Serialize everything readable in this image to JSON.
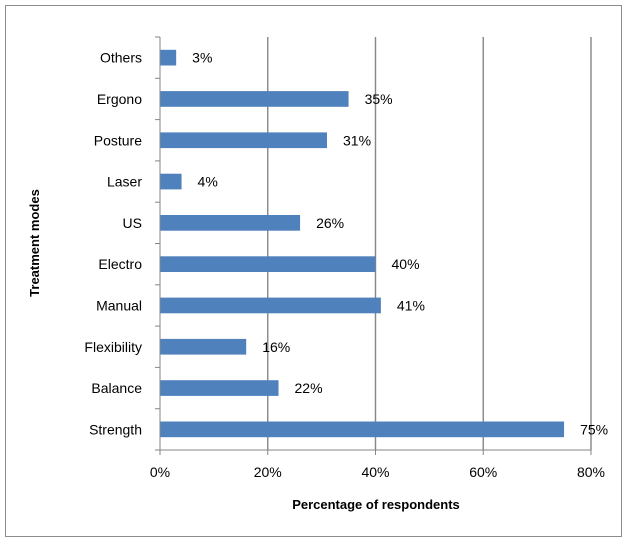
{
  "chart_data": {
    "type": "bar",
    "orientation": "horizontal",
    "categories": [
      "Strength",
      "Balance",
      "Flexibility",
      "Manual",
      "Electro",
      "US",
      "Laser",
      "Posture",
      "Ergono",
      "Others"
    ],
    "values": [
      75,
      22,
      16,
      41,
      40,
      26,
      4,
      31,
      35,
      3
    ],
    "data_labels": [
      "75%",
      "22%",
      "16%",
      "41%",
      "40%",
      "26%",
      "4%",
      "31%",
      "35%",
      "3%"
    ],
    "title": "",
    "xlabel": "Percentage of respondents",
    "ylabel": "Treatment modes",
    "xlim": [
      0,
      80
    ],
    "x_ticks": [
      0,
      20,
      40,
      60,
      80
    ],
    "x_tick_labels": [
      "0%",
      "20%",
      "40%",
      "60%",
      "80%"
    ],
    "grid": "vertical major gridlines",
    "legend": "none",
    "bar_color": "#4f81bd",
    "gridline_color": "#868686"
  }
}
